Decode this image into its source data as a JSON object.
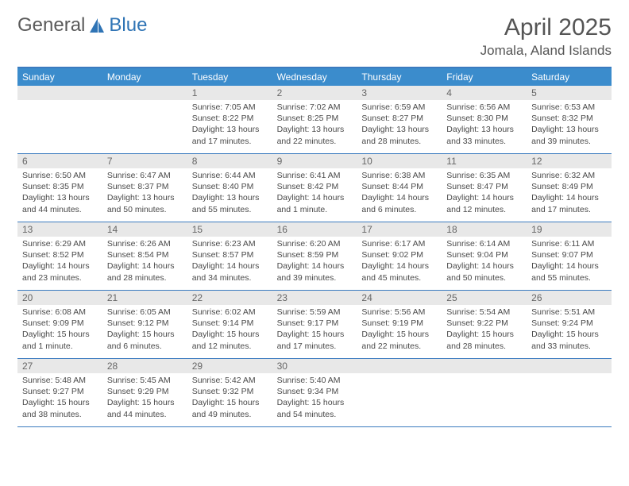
{
  "logo": {
    "text_left": "General",
    "text_right": "Blue",
    "accent_color": "#2f74b5"
  },
  "title": "April 2025",
  "location": "Jomala, Aland Islands",
  "colors": {
    "header_bg": "#3b8ccc",
    "header_text": "#ffffff",
    "border": "#3b7bbf",
    "date_bg": "#e8e8e8",
    "body_text": "#4a4a4a"
  },
  "day_names": [
    "Sunday",
    "Monday",
    "Tuesday",
    "Wednesday",
    "Thursday",
    "Friday",
    "Saturday"
  ],
  "weeks": [
    [
      {
        "date": "",
        "lines": []
      },
      {
        "date": "",
        "lines": []
      },
      {
        "date": "1",
        "lines": [
          "Sunrise: 7:05 AM",
          "Sunset: 8:22 PM",
          "Daylight: 13 hours",
          "and 17 minutes."
        ]
      },
      {
        "date": "2",
        "lines": [
          "Sunrise: 7:02 AM",
          "Sunset: 8:25 PM",
          "Daylight: 13 hours",
          "and 22 minutes."
        ]
      },
      {
        "date": "3",
        "lines": [
          "Sunrise: 6:59 AM",
          "Sunset: 8:27 PM",
          "Daylight: 13 hours",
          "and 28 minutes."
        ]
      },
      {
        "date": "4",
        "lines": [
          "Sunrise: 6:56 AM",
          "Sunset: 8:30 PM",
          "Daylight: 13 hours",
          "and 33 minutes."
        ]
      },
      {
        "date": "5",
        "lines": [
          "Sunrise: 6:53 AM",
          "Sunset: 8:32 PM",
          "Daylight: 13 hours",
          "and 39 minutes."
        ]
      }
    ],
    [
      {
        "date": "6",
        "lines": [
          "Sunrise: 6:50 AM",
          "Sunset: 8:35 PM",
          "Daylight: 13 hours",
          "and 44 minutes."
        ]
      },
      {
        "date": "7",
        "lines": [
          "Sunrise: 6:47 AM",
          "Sunset: 8:37 PM",
          "Daylight: 13 hours",
          "and 50 minutes."
        ]
      },
      {
        "date": "8",
        "lines": [
          "Sunrise: 6:44 AM",
          "Sunset: 8:40 PM",
          "Daylight: 13 hours",
          "and 55 minutes."
        ]
      },
      {
        "date": "9",
        "lines": [
          "Sunrise: 6:41 AM",
          "Sunset: 8:42 PM",
          "Daylight: 14 hours",
          "and 1 minute."
        ]
      },
      {
        "date": "10",
        "lines": [
          "Sunrise: 6:38 AM",
          "Sunset: 8:44 PM",
          "Daylight: 14 hours",
          "and 6 minutes."
        ]
      },
      {
        "date": "11",
        "lines": [
          "Sunrise: 6:35 AM",
          "Sunset: 8:47 PM",
          "Daylight: 14 hours",
          "and 12 minutes."
        ]
      },
      {
        "date": "12",
        "lines": [
          "Sunrise: 6:32 AM",
          "Sunset: 8:49 PM",
          "Daylight: 14 hours",
          "and 17 minutes."
        ]
      }
    ],
    [
      {
        "date": "13",
        "lines": [
          "Sunrise: 6:29 AM",
          "Sunset: 8:52 PM",
          "Daylight: 14 hours",
          "and 23 minutes."
        ]
      },
      {
        "date": "14",
        "lines": [
          "Sunrise: 6:26 AM",
          "Sunset: 8:54 PM",
          "Daylight: 14 hours",
          "and 28 minutes."
        ]
      },
      {
        "date": "15",
        "lines": [
          "Sunrise: 6:23 AM",
          "Sunset: 8:57 PM",
          "Daylight: 14 hours",
          "and 34 minutes."
        ]
      },
      {
        "date": "16",
        "lines": [
          "Sunrise: 6:20 AM",
          "Sunset: 8:59 PM",
          "Daylight: 14 hours",
          "and 39 minutes."
        ]
      },
      {
        "date": "17",
        "lines": [
          "Sunrise: 6:17 AM",
          "Sunset: 9:02 PM",
          "Daylight: 14 hours",
          "and 45 minutes."
        ]
      },
      {
        "date": "18",
        "lines": [
          "Sunrise: 6:14 AM",
          "Sunset: 9:04 PM",
          "Daylight: 14 hours",
          "and 50 minutes."
        ]
      },
      {
        "date": "19",
        "lines": [
          "Sunrise: 6:11 AM",
          "Sunset: 9:07 PM",
          "Daylight: 14 hours",
          "and 55 minutes."
        ]
      }
    ],
    [
      {
        "date": "20",
        "lines": [
          "Sunrise: 6:08 AM",
          "Sunset: 9:09 PM",
          "Daylight: 15 hours",
          "and 1 minute."
        ]
      },
      {
        "date": "21",
        "lines": [
          "Sunrise: 6:05 AM",
          "Sunset: 9:12 PM",
          "Daylight: 15 hours",
          "and 6 minutes."
        ]
      },
      {
        "date": "22",
        "lines": [
          "Sunrise: 6:02 AM",
          "Sunset: 9:14 PM",
          "Daylight: 15 hours",
          "and 12 minutes."
        ]
      },
      {
        "date": "23",
        "lines": [
          "Sunrise: 5:59 AM",
          "Sunset: 9:17 PM",
          "Daylight: 15 hours",
          "and 17 minutes."
        ]
      },
      {
        "date": "24",
        "lines": [
          "Sunrise: 5:56 AM",
          "Sunset: 9:19 PM",
          "Daylight: 15 hours",
          "and 22 minutes."
        ]
      },
      {
        "date": "25",
        "lines": [
          "Sunrise: 5:54 AM",
          "Sunset: 9:22 PM",
          "Daylight: 15 hours",
          "and 28 minutes."
        ]
      },
      {
        "date": "26",
        "lines": [
          "Sunrise: 5:51 AM",
          "Sunset: 9:24 PM",
          "Daylight: 15 hours",
          "and 33 minutes."
        ]
      }
    ],
    [
      {
        "date": "27",
        "lines": [
          "Sunrise: 5:48 AM",
          "Sunset: 9:27 PM",
          "Daylight: 15 hours",
          "and 38 minutes."
        ]
      },
      {
        "date": "28",
        "lines": [
          "Sunrise: 5:45 AM",
          "Sunset: 9:29 PM",
          "Daylight: 15 hours",
          "and 44 minutes."
        ]
      },
      {
        "date": "29",
        "lines": [
          "Sunrise: 5:42 AM",
          "Sunset: 9:32 PM",
          "Daylight: 15 hours",
          "and 49 minutes."
        ]
      },
      {
        "date": "30",
        "lines": [
          "Sunrise: 5:40 AM",
          "Sunset: 9:34 PM",
          "Daylight: 15 hours",
          "and 54 minutes."
        ]
      },
      {
        "date": "",
        "lines": []
      },
      {
        "date": "",
        "lines": []
      },
      {
        "date": "",
        "lines": []
      }
    ]
  ]
}
